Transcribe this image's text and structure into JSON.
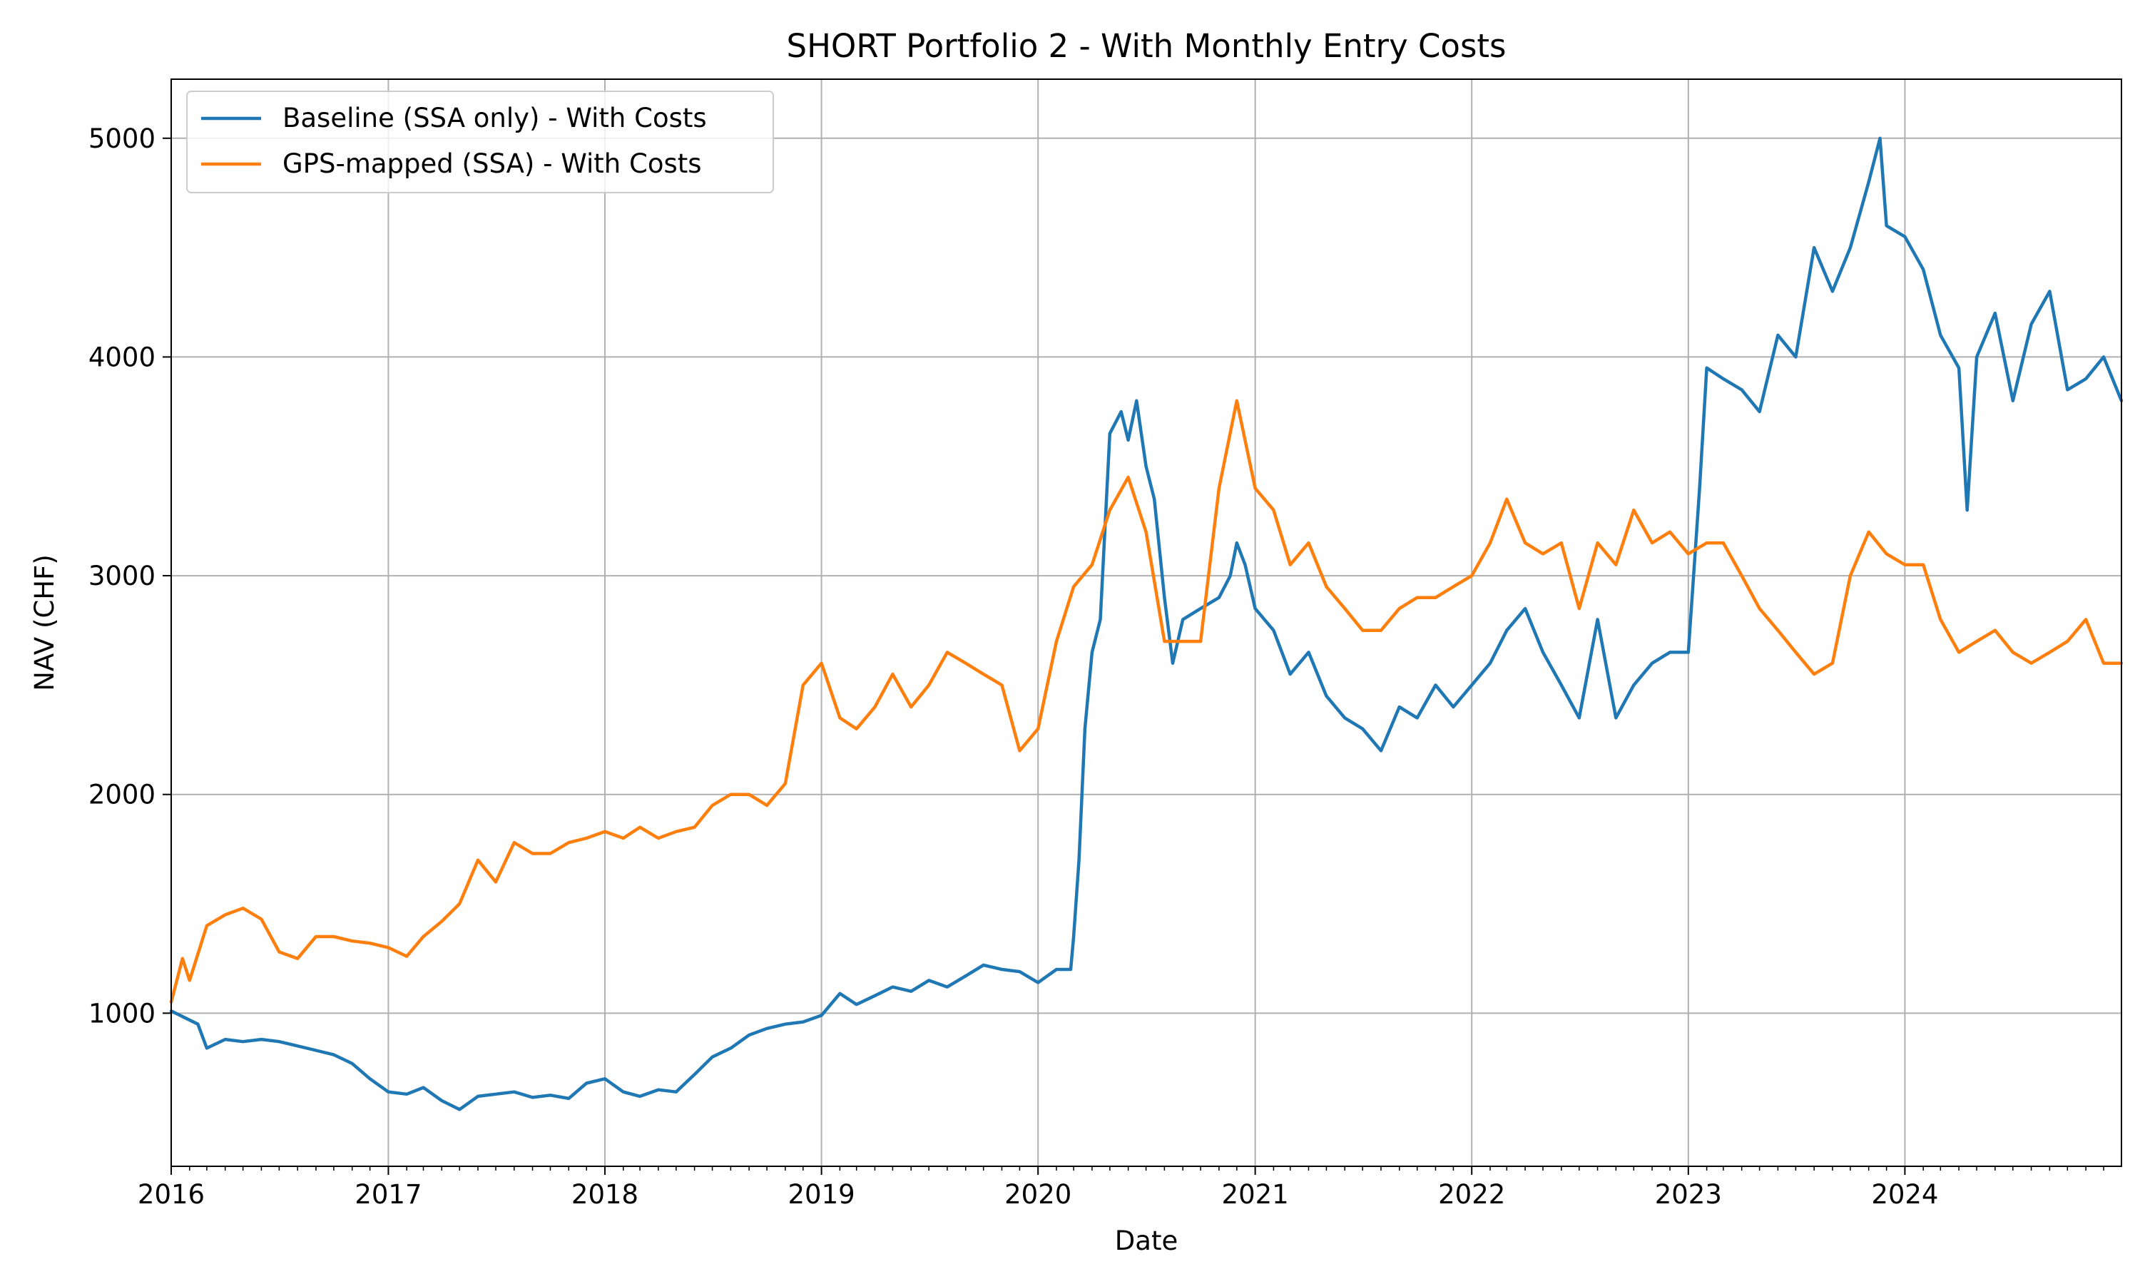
{
  "chart_data": {
    "type": "line",
    "title": "SHORT Portfolio 2 - With Monthly Entry Costs",
    "xlabel": "Date",
    "ylabel": "NAV (CHF)",
    "xlim": [
      "2016-01-01",
      "2024-12-31"
    ],
    "ylim": [
      300,
      5270
    ],
    "x_ticks": [
      "2016",
      "2017",
      "2018",
      "2019",
      "2020",
      "2021",
      "2022",
      "2023",
      "2024"
    ],
    "y_ticks": [
      1000,
      2000,
      3000,
      4000,
      5000
    ],
    "grid": true,
    "legend_position": "top-left",
    "series": [
      {
        "name": "Baseline (SSA only) - With Costs",
        "color": "#1f77b4",
        "points": [
          [
            "2016-01-01",
            1010
          ],
          [
            "2016-02-15",
            950
          ],
          [
            "2016-03-01",
            840
          ],
          [
            "2016-04-01",
            880
          ],
          [
            "2016-05-01",
            870
          ],
          [
            "2016-06-01",
            880
          ],
          [
            "2016-07-01",
            870
          ],
          [
            "2016-08-01",
            850
          ],
          [
            "2016-09-01",
            830
          ],
          [
            "2016-10-01",
            810
          ],
          [
            "2016-11-01",
            770
          ],
          [
            "2016-12-01",
            700
          ],
          [
            "2017-01-01",
            640
          ],
          [
            "2017-02-01",
            630
          ],
          [
            "2017-03-01",
            660
          ],
          [
            "2017-04-01",
            600
          ],
          [
            "2017-05-01",
            560
          ],
          [
            "2017-06-01",
            620
          ],
          [
            "2017-07-01",
            630
          ],
          [
            "2017-08-01",
            640
          ],
          [
            "2017-09-01",
            615
          ],
          [
            "2017-10-01",
            625
          ],
          [
            "2017-11-01",
            610
          ],
          [
            "2017-12-01",
            680
          ],
          [
            "2018-01-01",
            700
          ],
          [
            "2018-02-01",
            640
          ],
          [
            "2018-03-01",
            620
          ],
          [
            "2018-04-01",
            650
          ],
          [
            "2018-05-01",
            640
          ],
          [
            "2018-06-01",
            720
          ],
          [
            "2018-07-01",
            800
          ],
          [
            "2018-08-01",
            840
          ],
          [
            "2018-09-01",
            900
          ],
          [
            "2018-10-01",
            930
          ],
          [
            "2018-11-01",
            950
          ],
          [
            "2018-12-01",
            960
          ],
          [
            "2019-01-01",
            990
          ],
          [
            "2019-02-01",
            1090
          ],
          [
            "2019-03-01",
            1040
          ],
          [
            "2019-04-01",
            1080
          ],
          [
            "2019-05-01",
            1120
          ],
          [
            "2019-06-01",
            1100
          ],
          [
            "2019-07-01",
            1150
          ],
          [
            "2019-08-01",
            1120
          ],
          [
            "2019-09-01",
            1170
          ],
          [
            "2019-10-01",
            1220
          ],
          [
            "2019-11-01",
            1200
          ],
          [
            "2019-12-01",
            1190
          ],
          [
            "2020-01-01",
            1140
          ],
          [
            "2020-02-01",
            1200
          ],
          [
            "2020-02-25",
            1200
          ],
          [
            "2020-03-01",
            1350
          ],
          [
            "2020-03-10",
            1700
          ],
          [
            "2020-03-20",
            2300
          ],
          [
            "2020-04-01",
            2650
          ],
          [
            "2020-04-15",
            2800
          ],
          [
            "2020-05-01",
            3650
          ],
          [
            "2020-05-20",
            3750
          ],
          [
            "2020-06-01",
            3620
          ],
          [
            "2020-06-15",
            3800
          ],
          [
            "2020-07-01",
            3500
          ],
          [
            "2020-07-15",
            3350
          ],
          [
            "2020-08-01",
            2900
          ],
          [
            "2020-08-15",
            2600
          ],
          [
            "2020-09-01",
            2800
          ],
          [
            "2020-10-01",
            2850
          ],
          [
            "2020-11-01",
            2900
          ],
          [
            "2020-11-20",
            3000
          ],
          [
            "2020-12-01",
            3150
          ],
          [
            "2020-12-15",
            3050
          ],
          [
            "2021-01-01",
            2850
          ],
          [
            "2021-02-01",
            2750
          ],
          [
            "2021-03-01",
            2550
          ],
          [
            "2021-04-01",
            2650
          ],
          [
            "2021-05-01",
            2450
          ],
          [
            "2021-06-01",
            2350
          ],
          [
            "2021-07-01",
            2300
          ],
          [
            "2021-08-01",
            2200
          ],
          [
            "2021-09-01",
            2400
          ],
          [
            "2021-10-01",
            2350
          ],
          [
            "2021-11-01",
            2500
          ],
          [
            "2021-12-01",
            2400
          ],
          [
            "2022-01-01",
            2500
          ],
          [
            "2022-02-01",
            2600
          ],
          [
            "2022-03-01",
            2750
          ],
          [
            "2022-04-01",
            2850
          ],
          [
            "2022-05-01",
            2650
          ],
          [
            "2022-06-01",
            2500
          ],
          [
            "2022-07-01",
            2350
          ],
          [
            "2022-08-01",
            2800
          ],
          [
            "2022-09-01",
            2350
          ],
          [
            "2022-10-01",
            2500
          ],
          [
            "2022-11-01",
            2600
          ],
          [
            "2022-12-01",
            2650
          ],
          [
            "2023-01-01",
            2650
          ],
          [
            "2023-01-20",
            3400
          ],
          [
            "2023-02-01",
            3950
          ],
          [
            "2023-03-01",
            3900
          ],
          [
            "2023-04-01",
            3850
          ],
          [
            "2023-05-01",
            3750
          ],
          [
            "2023-06-01",
            4100
          ],
          [
            "2023-07-01",
            4000
          ],
          [
            "2023-08-01",
            4500
          ],
          [
            "2023-09-01",
            4300
          ],
          [
            "2023-10-01",
            4500
          ],
          [
            "2023-11-01",
            4800
          ],
          [
            "2023-11-20",
            5000
          ],
          [
            "2023-12-01",
            4600
          ],
          [
            "2024-01-01",
            4550
          ],
          [
            "2024-02-01",
            4400
          ],
          [
            "2024-03-01",
            4100
          ],
          [
            "2024-04-01",
            3950
          ],
          [
            "2024-04-15",
            3300
          ],
          [
            "2024-05-01",
            4000
          ],
          [
            "2024-06-01",
            4200
          ],
          [
            "2024-07-01",
            3800
          ],
          [
            "2024-08-01",
            4150
          ],
          [
            "2024-09-01",
            4300
          ],
          [
            "2024-10-01",
            3850
          ],
          [
            "2024-11-01",
            3900
          ],
          [
            "2024-12-01",
            4000
          ],
          [
            "2024-12-31",
            3800
          ]
        ]
      },
      {
        "name": "GPS-mapped (SSA) - With Costs",
        "color": "#ff7f0e",
        "points": [
          [
            "2016-01-01",
            1050
          ],
          [
            "2016-01-20",
            1250
          ],
          [
            "2016-02-01",
            1150
          ],
          [
            "2016-03-01",
            1400
          ],
          [
            "2016-04-01",
            1450
          ],
          [
            "2016-05-01",
            1480
          ],
          [
            "2016-06-01",
            1430
          ],
          [
            "2016-07-01",
            1280
          ],
          [
            "2016-08-01",
            1250
          ],
          [
            "2016-09-01",
            1350
          ],
          [
            "2016-10-01",
            1350
          ],
          [
            "2016-11-01",
            1330
          ],
          [
            "2016-12-01",
            1320
          ],
          [
            "2017-01-01",
            1300
          ],
          [
            "2017-02-01",
            1260
          ],
          [
            "2017-03-01",
            1350
          ],
          [
            "2017-04-01",
            1420
          ],
          [
            "2017-05-01",
            1500
          ],
          [
            "2017-06-01",
            1700
          ],
          [
            "2017-07-01",
            1600
          ],
          [
            "2017-08-01",
            1780
          ],
          [
            "2017-09-01",
            1730
          ],
          [
            "2017-10-01",
            1730
          ],
          [
            "2017-11-01",
            1780
          ],
          [
            "2017-12-01",
            1800
          ],
          [
            "2018-01-01",
            1830
          ],
          [
            "2018-02-01",
            1800
          ],
          [
            "2018-03-01",
            1850
          ],
          [
            "2018-04-01",
            1800
          ],
          [
            "2018-05-01",
            1830
          ],
          [
            "2018-06-01",
            1850
          ],
          [
            "2018-07-01",
            1950
          ],
          [
            "2018-08-01",
            2000
          ],
          [
            "2018-09-01",
            2000
          ],
          [
            "2018-10-01",
            1950
          ],
          [
            "2018-11-01",
            2050
          ],
          [
            "2018-12-01",
            2500
          ],
          [
            "2019-01-01",
            2600
          ],
          [
            "2019-02-01",
            2350
          ],
          [
            "2019-03-01",
            2300
          ],
          [
            "2019-04-01",
            2400
          ],
          [
            "2019-05-01",
            2550
          ],
          [
            "2019-06-01",
            2400
          ],
          [
            "2019-07-01",
            2500
          ],
          [
            "2019-08-01",
            2650
          ],
          [
            "2019-09-01",
            2600
          ],
          [
            "2019-10-01",
            2550
          ],
          [
            "2019-11-01",
            2500
          ],
          [
            "2019-12-01",
            2200
          ],
          [
            "2020-01-01",
            2300
          ],
          [
            "2020-02-01",
            2700
          ],
          [
            "2020-03-01",
            2950
          ],
          [
            "2020-04-01",
            3050
          ],
          [
            "2020-05-01",
            3300
          ],
          [
            "2020-06-01",
            3450
          ],
          [
            "2020-07-01",
            3200
          ],
          [
            "2020-08-01",
            2700
          ],
          [
            "2020-09-01",
            2700
          ],
          [
            "2020-10-01",
            2700
          ],
          [
            "2020-11-01",
            3400
          ],
          [
            "2020-12-01",
            3800
          ],
          [
            "2021-01-01",
            3400
          ],
          [
            "2021-02-01",
            3300
          ],
          [
            "2021-03-01",
            3050
          ],
          [
            "2021-04-01",
            3150
          ],
          [
            "2021-05-01",
            2950
          ],
          [
            "2021-06-01",
            2850
          ],
          [
            "2021-07-01",
            2750
          ],
          [
            "2021-08-01",
            2750
          ],
          [
            "2021-09-01",
            2850
          ],
          [
            "2021-10-01",
            2900
          ],
          [
            "2021-11-01",
            2900
          ],
          [
            "2021-12-01",
            2950
          ],
          [
            "2022-01-01",
            3000
          ],
          [
            "2022-02-01",
            3150
          ],
          [
            "2022-03-01",
            3350
          ],
          [
            "2022-04-01",
            3150
          ],
          [
            "2022-05-01",
            3100
          ],
          [
            "2022-06-01",
            3150
          ],
          [
            "2022-07-01",
            2850
          ],
          [
            "2022-08-01",
            3150
          ],
          [
            "2022-09-01",
            3050
          ],
          [
            "2022-10-01",
            3300
          ],
          [
            "2022-11-01",
            3150
          ],
          [
            "2022-12-01",
            3200
          ],
          [
            "2023-01-01",
            3100
          ],
          [
            "2023-02-01",
            3150
          ],
          [
            "2023-03-01",
            3150
          ],
          [
            "2023-04-01",
            3000
          ],
          [
            "2023-05-01",
            2850
          ],
          [
            "2023-06-01",
            2750
          ],
          [
            "2023-07-01",
            2650
          ],
          [
            "2023-08-01",
            2550
          ],
          [
            "2023-09-01",
            2600
          ],
          [
            "2023-10-01",
            3000
          ],
          [
            "2023-11-01",
            3200
          ],
          [
            "2023-12-01",
            3100
          ],
          [
            "2024-01-01",
            3050
          ],
          [
            "2024-02-01",
            3050
          ],
          [
            "2024-03-01",
            2800
          ],
          [
            "2024-04-01",
            2650
          ],
          [
            "2024-05-01",
            2700
          ],
          [
            "2024-06-01",
            2750
          ],
          [
            "2024-07-01",
            2650
          ],
          [
            "2024-08-01",
            2600
          ],
          [
            "2024-09-01",
            2650
          ],
          [
            "2024-10-01",
            2700
          ],
          [
            "2024-11-01",
            2800
          ],
          [
            "2024-12-01",
            2600
          ],
          [
            "2024-12-31",
            2600
          ]
        ]
      }
    ]
  }
}
